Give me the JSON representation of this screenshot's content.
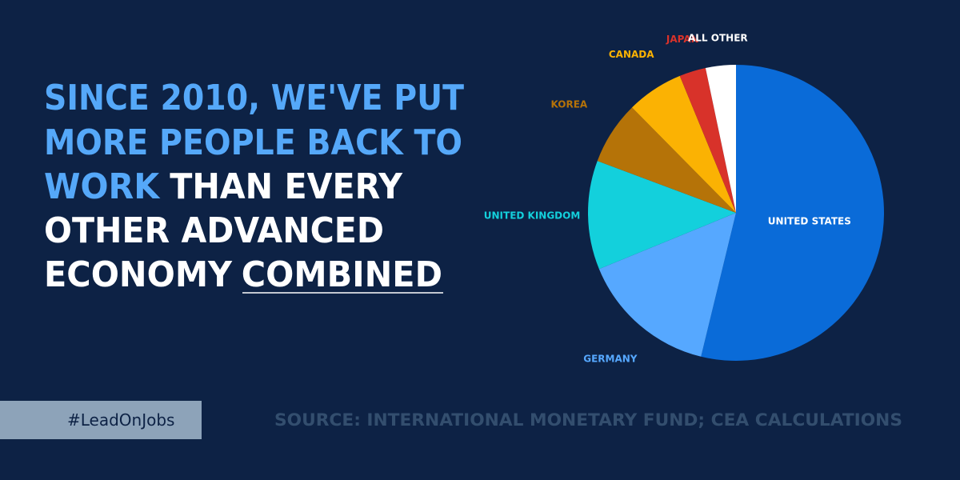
{
  "chart_data": {
    "type": "pie",
    "headline": [
      "SINCE 2010, WE'VE PUT",
      "MORE PEOPLE BACK TO",
      "WORK",
      "THAN EVERY",
      "OTHER ADVANCED",
      "ECONOMY",
      "COMBINED"
    ],
    "categories": [
      "UNITED STATES",
      "GERMANY",
      "UNITED KINGDOM",
      "KOREA",
      "CANADA",
      "JAPAN",
      "ALL OTHER"
    ],
    "values": [
      53.8,
      15.0,
      11.9,
      6.9,
      6.2,
      2.9,
      3.3
    ],
    "colors": [
      "#0a6bd8",
      "#56a8ff",
      "#13d0dc",
      "#b57308",
      "#fbb203",
      "#d8322a",
      "#ffffff"
    ],
    "hashtag": "#LeadOnJobs",
    "source": "SOURCE: INTERNATIONAL MONETARY FUND; CEA CALCULATIONS"
  }
}
